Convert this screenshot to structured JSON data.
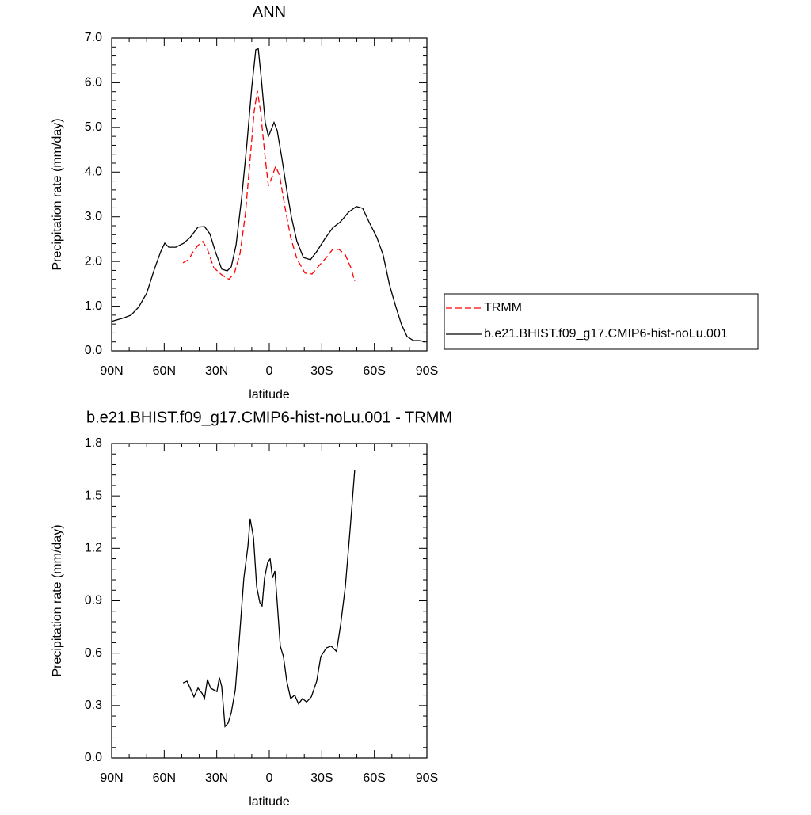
{
  "chart_data": [
    {
      "type": "line",
      "title": "ANN",
      "xlabel": "latitude",
      "ylabel": "Precipitation rate (mm/day)",
      "legend": "right",
      "xlim": [
        90,
        -90
      ],
      "ylim": [
        0,
        7
      ],
      "xticks": [
        {
          "value": 90,
          "label": "90N"
        },
        {
          "value": 60,
          "label": "60N"
        },
        {
          "value": 30,
          "label": "30N"
        },
        0,
        {
          "value": -30,
          "label": "30S"
        },
        {
          "value": -60,
          "label": "60S"
        },
        {
          "value": -90,
          "label": "90S"
        }
      ],
      "yticks": [
        {
          "value": 0,
          "label": "0.0"
        },
        {
          "value": 1,
          "label": "1.0"
        },
        {
          "value": 2,
          "label": "2.0"
        },
        {
          "value": 3,
          "label": "3.0"
        },
        {
          "value": 4,
          "label": "4.0"
        },
        {
          "value": 5,
          "label": "5.0"
        },
        {
          "value": 6,
          "label": "6.0"
        },
        {
          "value": 7,
          "label": "7.0"
        }
      ],
      "series": [
        {
          "name": "TRMM",
          "color": "#ff0000",
          "dashed": true,
          "x": [
            49.3,
            46.1,
            43.4,
            40.7,
            38,
            35.3,
            31.7,
            27.1,
            23,
            19.9,
            16.7,
            13.6,
            10.9,
            8.6,
            6.8,
            5,
            2.3,
            0.5,
            -1.4,
            -3.6,
            -5.9,
            -9,
            -12.2,
            -15.8,
            -20.4,
            -24.4,
            -28.5,
            -32.6,
            -36.2,
            -39.8,
            -43.4,
            -46.6,
            -48.8
          ],
          "values": [
            1.97,
            2.04,
            2.22,
            2.36,
            2.45,
            2.27,
            1.86,
            1.7,
            1.6,
            1.74,
            2.18,
            3.07,
            4.31,
            5.37,
            5.82,
            5.37,
            4.31,
            3.69,
            3.87,
            4.13,
            3.92,
            3.21,
            2.54,
            2.06,
            1.74,
            1.72,
            1.91,
            2.09,
            2.27,
            2.27,
            2.15,
            1.86,
            1.56
          ]
        },
        {
          "name": "b.e21.BHIST.f09_g17.CMIP6-hist-noLu.001",
          "color": "#000000",
          "dashed": false,
          "x": [
            90,
            83.7,
            79,
            74.6,
            70,
            65.6,
            62,
            59.7,
            57.4,
            53.4,
            48.8,
            45.2,
            40.7,
            37,
            33.9,
            30.8,
            27.2,
            24,
            21.7,
            19,
            15.8,
            12.7,
            10,
            7.7,
            6.3,
            4.5,
            2.3,
            0.5,
            -0.9,
            -2.7,
            -4.5,
            -7.2,
            -10,
            -12.7,
            -15.8,
            -19.5,
            -23.5,
            -27.1,
            -31.6,
            -36.2,
            -40.7,
            -45.2,
            -49.7,
            -53.3,
            -56.9,
            -61.4,
            -65,
            -68.7,
            -72.3,
            -75.5,
            -78.7,
            -82.3,
            -85.9,
            -89
          ],
          "values": [
            0.66,
            0.73,
            0.8,
            0.98,
            1.29,
            1.83,
            2.22,
            2.41,
            2.32,
            2.32,
            2.41,
            2.54,
            2.77,
            2.78,
            2.62,
            2.22,
            1.83,
            1.79,
            1.88,
            2.36,
            3.42,
            4.66,
            5.9,
            6.74,
            6.76,
            6.08,
            5.11,
            4.8,
            4.93,
            5.11,
            4.93,
            4.31,
            3.6,
            2.98,
            2.45,
            2.09,
            2.04,
            2.22,
            2.5,
            2.75,
            2.89,
            3.1,
            3.23,
            3.19,
            2.89,
            2.54,
            2.15,
            1.47,
            0.98,
            0.59,
            0.32,
            0.23,
            0.23,
            0.2
          ]
        }
      ]
    },
    {
      "type": "line",
      "title": "b.e21.BHIST.f09_g17.CMIP6-hist-noLu.001 - TRMM",
      "xlabel": "latitude",
      "ylabel": "Precipitation rate (mm/day)",
      "xlim": [
        90,
        -90
      ],
      "ylim": [
        0,
        1.8
      ],
      "xticks": [
        {
          "value": 90,
          "label": "90N"
        },
        {
          "value": 60,
          "label": "60N"
        },
        {
          "value": 30,
          "label": "30N"
        },
        0,
        {
          "value": -30,
          "label": "30S"
        },
        {
          "value": -60,
          "label": "60S"
        },
        {
          "value": -90,
          "label": "90S"
        }
      ],
      "yticks": [
        {
          "value": 0,
          "label": "0.0"
        },
        {
          "value": 0.3,
          "label": "0.3"
        },
        {
          "value": 0.6,
          "label": "0.6"
        },
        {
          "value": 0.9,
          "label": "0.9"
        },
        {
          "value": 1.2,
          "label": "1.2"
        },
        {
          "value": 1.5,
          "label": "1.5"
        },
        {
          "value": 1.8,
          "label": "1.8"
        }
      ],
      "series": [
        {
          "color": "#000000",
          "dashed": false,
          "x": [
            49.3,
            47,
            45.2,
            43,
            40.7,
            38.4,
            37,
            35.3,
            33.5,
            31.7,
            29.9,
            28.5,
            27.2,
            25.3,
            23.5,
            21.7,
            19.4,
            17.2,
            14.5,
            12.2,
            10.9,
            9,
            7.2,
            5.4,
            4.1,
            2.7,
            0.9,
            -0.5,
            -1.8,
            -3.2,
            -4.5,
            -6.3,
            -8.1,
            -10,
            -12.2,
            -14.5,
            -16.7,
            -19,
            -21.3,
            -24,
            -27.1,
            -29.4,
            -32.6,
            -35.3,
            -38.4,
            -40.7,
            -43.4,
            -46.1,
            -48.8
          ],
          "values": [
            0.43,
            0.44,
            0.4,
            0.35,
            0.4,
            0.37,
            0.34,
            0.45,
            0.4,
            0.39,
            0.38,
            0.46,
            0.41,
            0.18,
            0.2,
            0.26,
            0.39,
            0.67,
            1.03,
            1.21,
            1.37,
            1.26,
            0.98,
            0.89,
            0.87,
            1.03,
            1.12,
            1.14,
            1.03,
            1.07,
            0.89,
            0.64,
            0.58,
            0.44,
            0.34,
            0.36,
            0.31,
            0.34,
            0.32,
            0.35,
            0.44,
            0.58,
            0.63,
            0.64,
            0.61,
            0.76,
            0.98,
            1.3,
            1.65
          ]
        }
      ]
    }
  ]
}
